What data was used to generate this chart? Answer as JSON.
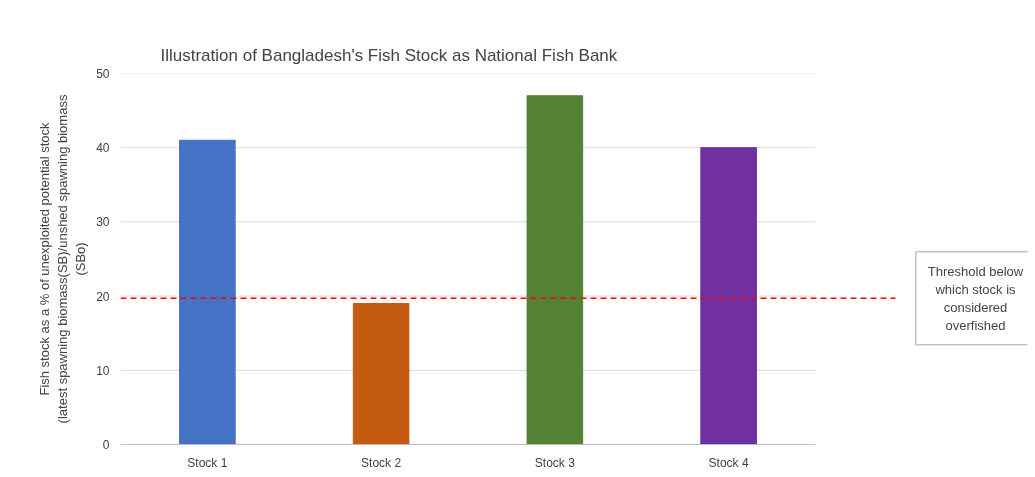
{
  "chart_data": {
    "type": "bar",
    "title": "Illustration  of Bangladesh's Fish Stock as National Fish Bank",
    "ylabel": "Fish stock as a % of unexploited potential stock (latest spawning biomass(SB)/unshed spawning biomass (SBo)",
    "categories": [
      "Stock 1",
      "Stock 2",
      "Stock 3",
      "Stock 4"
    ],
    "values": [
      41,
      19,
      47,
      40
    ],
    "colors": [
      "#4472c4",
      "#c55a11",
      "#548235",
      "#7030a0"
    ],
    "ylim": [
      0,
      50
    ],
    "yticks": [
      0,
      10,
      20,
      30,
      40,
      50
    ],
    "grid": "y",
    "ref_lines": [
      {
        "axis": "y",
        "value": 19.7,
        "label": "Threshold below which stock is considered overfished",
        "color": "#ff0000",
        "line_style": "dashed"
      }
    ]
  }
}
